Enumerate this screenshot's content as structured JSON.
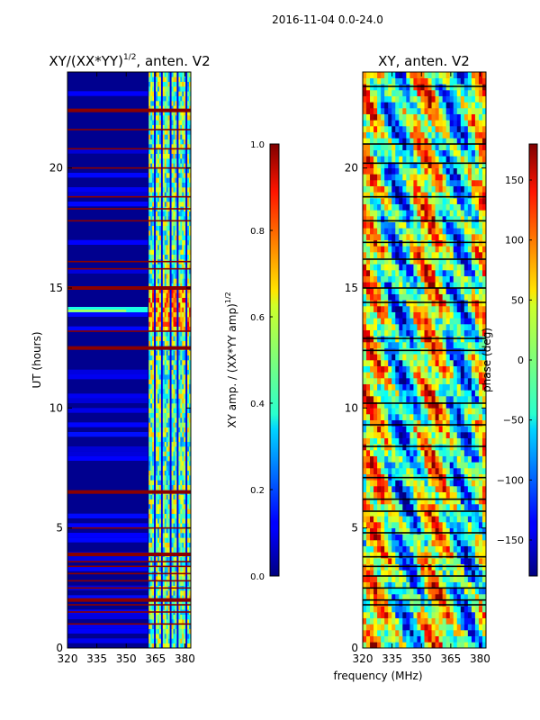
{
  "figure": {
    "suptitle": "2016-11-04 0.0-24.0",
    "shared_xlabel": "frequency (MHz)"
  },
  "chart_data": [
    {
      "type": "heatmap",
      "title": "XY/(XX*YY)",
      "title_superscript": "1/2",
      "title_suffix": ", anten. V2",
      "xlabel": "",
      "ylabel": "UT (hours)",
      "xlim": [
        320,
        383
      ],
      "ylim": [
        0,
        24
      ],
      "xticks": [
        320,
        335,
        350,
        365,
        380
      ],
      "yticks": [
        0,
        5,
        10,
        15,
        20
      ],
      "colormap": "jet",
      "colorbar": {
        "label": "XY amp. / (XX*YY amp)",
        "label_superscript": "1/2",
        "range": [
          0.0,
          1.0
        ],
        "ticks": [
          "0.0",
          "0.2",
          "0.4",
          "0.6",
          "0.8",
          "1.0"
        ]
      },
      "flagged_hours": [
        1.0,
        1.5,
        1.8,
        2.0,
        2.5,
        2.8,
        3.1,
        3.4,
        3.6,
        3.9,
        5.0,
        6.5,
        12.5,
        13.2,
        15.0,
        15.8,
        16.1,
        17.8,
        18.3,
        18.8,
        20.0,
        20.8,
        21.6,
        22.4
      ],
      "strong_band_hours": [
        2.0,
        3.9,
        6.5,
        12.5,
        15.0,
        22.4
      ],
      "features": "low amplitude below 361 MHz; high-amplitude structure between 362 and 381 MHz; bright band near 14 UT"
    },
    {
      "type": "heatmap",
      "title": "XY, anten. V2",
      "xlabel": "",
      "ylabel": "",
      "xlim": [
        320,
        383
      ],
      "ylim": [
        0,
        24
      ],
      "xticks": [
        320,
        335,
        350,
        365,
        380
      ],
      "yticks": [
        0,
        5,
        10,
        15,
        20
      ],
      "colormap": "jet",
      "colorbar": {
        "label": "phase (deg)",
        "range": [
          -180,
          180
        ],
        "ticks": [
          "-150",
          "-100",
          "-50",
          "0",
          "50",
          "100",
          "150"
        ]
      },
      "flagged_hours": [
        1.8,
        2.0,
        2.5,
        3.0,
        3.4,
        3.8,
        4.8,
        5.7,
        6.2,
        7.1,
        8.4,
        9.3,
        10.2,
        12.4,
        12.9,
        14.4,
        15.0,
        16.2,
        16.9,
        17.8,
        18.8,
        20.2,
        21.0,
        23.4
      ]
    }
  ]
}
